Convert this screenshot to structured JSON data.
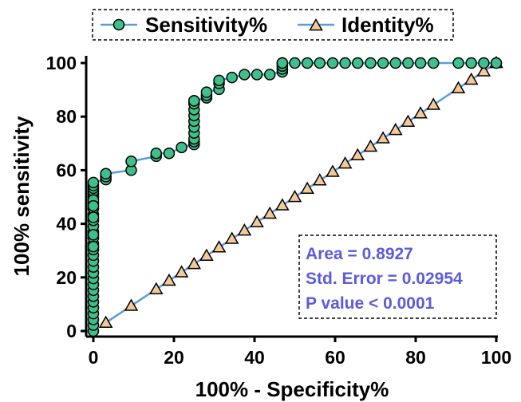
{
  "chart_data": {
    "type": "line",
    "title": "",
    "xlabel": "100% - Specificity%",
    "ylabel": "100% sensitivity",
    "xlim": [
      0,
      100
    ],
    "ylim": [
      0,
      100
    ],
    "x_ticks": [
      0,
      20,
      40,
      60,
      80,
      100
    ],
    "y_ticks": [
      0,
      20,
      40,
      60,
      80,
      100
    ],
    "grid": false,
    "legend_position": "top",
    "series": [
      {
        "name": "Sensitivity%",
        "marker": "circle",
        "color": "#3fc08a",
        "line_color": "#5b9be0",
        "x": [
          0,
          0,
          0,
          0,
          0,
          0,
          0,
          0,
          0,
          0,
          0,
          0,
          0,
          0,
          0,
          0,
          0,
          0,
          0,
          0,
          0,
          0,
          0,
          0,
          0,
          0,
          0,
          0,
          0,
          0,
          0,
          0,
          0,
          0,
          3.1,
          3.1,
          3.1,
          9.4,
          9.4,
          15.6,
          15.6,
          18.8,
          21.9,
          25,
          25,
          25,
          25,
          25,
          25,
          25,
          25,
          25,
          25,
          25,
          28.1,
          28.1,
          28.1,
          31.2,
          31.2,
          31.2,
          34.4,
          37.5,
          40.6,
          43.8,
          46.9,
          46.9,
          46.9,
          46.9,
          46.9,
          50,
          53.1,
          56.2,
          59.4,
          62.5,
          65.6,
          68.8,
          71.9,
          75,
          78.1,
          81.2,
          84.4,
          90.6,
          93.8,
          96.9,
          100
        ],
        "y": [
          0,
          2.2,
          4.3,
          6.5,
          8.7,
          10.9,
          13,
          15.2,
          17.4,
          19.6,
          21.7,
          23.9,
          26.1,
          28.3,
          30.4,
          32.6,
          34.8,
          37,
          39.1,
          41.3,
          43.5,
          45.7,
          47.8,
          50,
          51.1,
          52.2,
          53.3,
          54.3,
          55.4,
          48.9,
          46.7,
          42.4,
          35.9,
          31.5,
          56.5,
          57.6,
          58.7,
          60,
          63.3,
          65.2,
          66.3,
          66.3,
          68.5,
          69.6,
          70.7,
          71.7,
          73.9,
          76.1,
          78.3,
          80.4,
          82.6,
          84.8,
          85.9,
          85.9,
          87,
          88,
          89.1,
          90.2,
          92.4,
          93.5,
          94.6,
          95.7,
          95.7,
          95.7,
          96.7,
          97.8,
          98.9,
          100,
          100,
          100,
          100,
          100,
          100,
          100,
          100,
          100,
          100,
          100,
          100,
          100,
          100,
          100,
          100,
          100,
          100
        ]
      },
      {
        "name": "Identity%",
        "marker": "triangle",
        "color": "#f2c99a",
        "line_color": "#5b9be0",
        "x": [
          3.1,
          9.4,
          15.6,
          18.8,
          21.9,
          25,
          28.1,
          31.2,
          34.4,
          37.5,
          40.6,
          43.8,
          46.9,
          50,
          53.1,
          56.2,
          59.4,
          62.5,
          65.6,
          68.8,
          71.9,
          75,
          78.1,
          81.2,
          84.4,
          90.6,
          93.8,
          96.9,
          100
        ],
        "y": [
          3.1,
          9.4,
          15.6,
          18.8,
          21.9,
          25,
          28.1,
          31.2,
          34.4,
          37.5,
          40.6,
          43.8,
          46.9,
          50,
          53.1,
          56.2,
          59.4,
          62.5,
          65.6,
          68.8,
          71.9,
          75,
          78.1,
          81.2,
          84.4,
          90.6,
          93.8,
          96.9,
          100
        ]
      }
    ],
    "annotations": [
      "Area = 0.8927",
      "Std. Error = 0.02954",
      "P value < 0.0001"
    ],
    "annotation_color": "#5b5bdc"
  }
}
